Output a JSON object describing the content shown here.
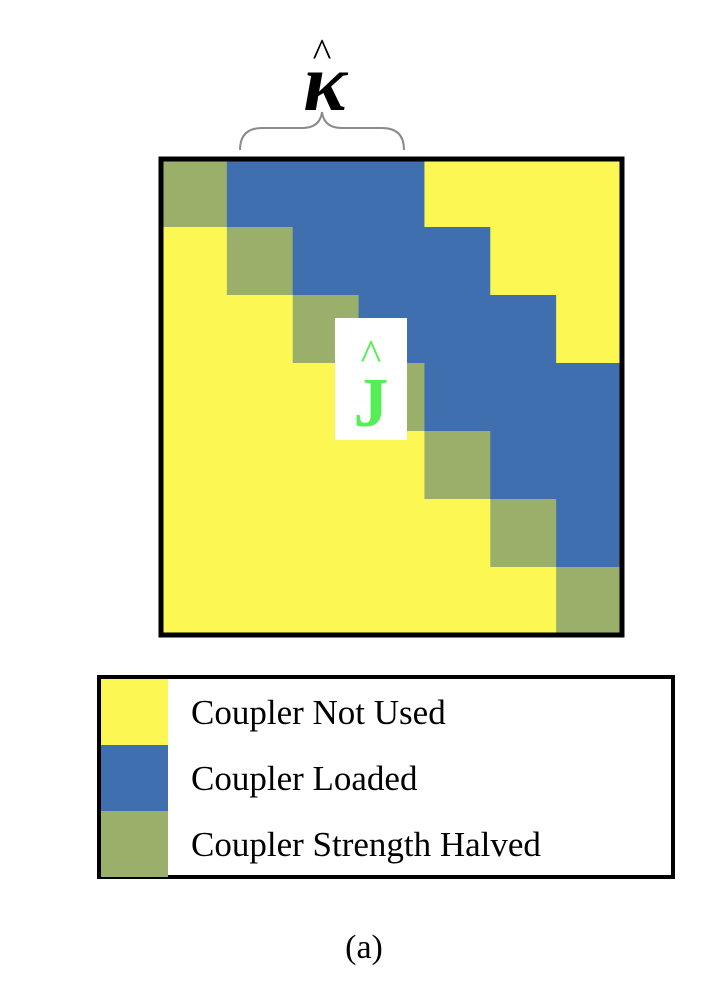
{
  "symbols": {
    "kappa": "κ",
    "kappa_hat": "^",
    "j": "J",
    "j_hat": "^"
  },
  "matrix": {
    "size": 7,
    "legend_keys": [
      "not_used",
      "loaded",
      "halved"
    ],
    "rows": [
      [
        "halved",
        "loaded",
        "loaded",
        "loaded",
        "not_used",
        "not_used",
        "not_used"
      ],
      [
        "not_used",
        "halved",
        "loaded",
        "loaded",
        "loaded",
        "not_used",
        "not_used"
      ],
      [
        "not_used",
        "not_used",
        "halved",
        "loaded",
        "loaded",
        "loaded",
        "not_used"
      ],
      [
        "not_used",
        "not_used",
        "not_used",
        "halved",
        "loaded",
        "loaded",
        "loaded"
      ],
      [
        "not_used",
        "not_used",
        "not_used",
        "not_used",
        "halved",
        "loaded",
        "loaded"
      ],
      [
        "not_used",
        "not_used",
        "not_used",
        "not_used",
        "not_used",
        "halved",
        "loaded"
      ],
      [
        "not_used",
        "not_used",
        "not_used",
        "not_used",
        "not_used",
        "not_used",
        "halved"
      ]
    ]
  },
  "colors": {
    "not_used": "#fdf754",
    "loaded": "#3f6fae",
    "halved": "#9aaf6a",
    "j_label": "#55ee55",
    "border": "#000000"
  },
  "legend": [
    {
      "key": "not_used",
      "label": "Coupler Not Used"
    },
    {
      "key": "loaded",
      "label": "Coupler Loaded"
    },
    {
      "key": "halved",
      "label": "Coupler Strength Halved"
    }
  ],
  "caption": "(a)"
}
